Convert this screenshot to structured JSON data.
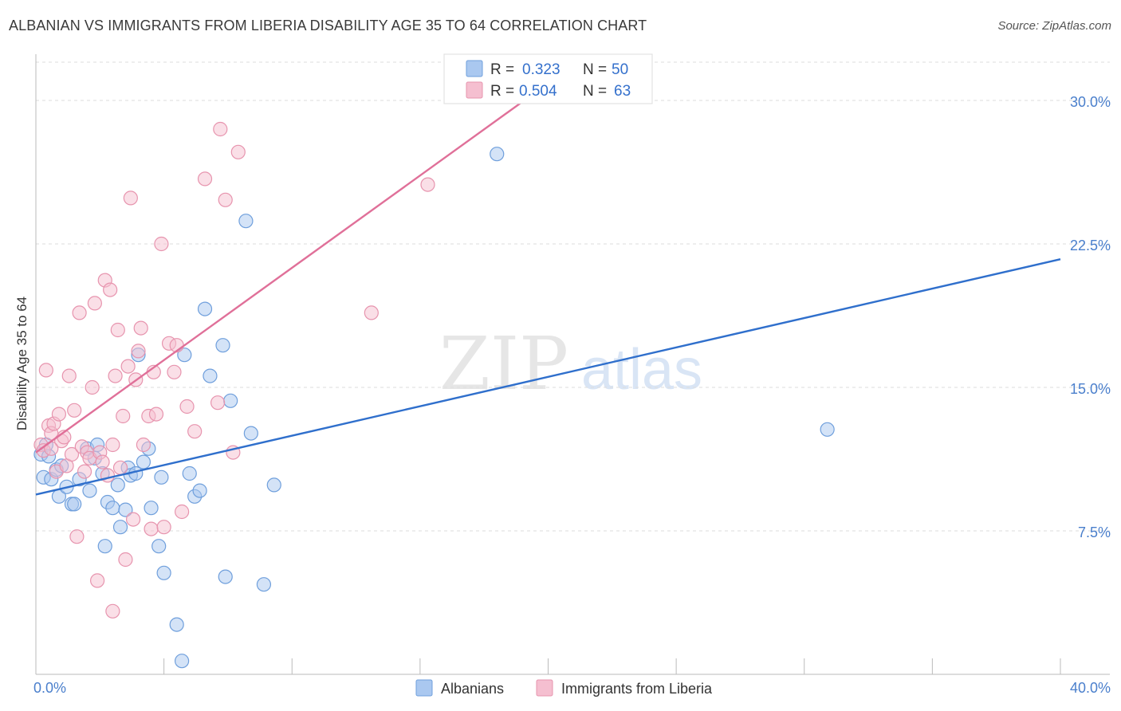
{
  "header": {
    "title": "ALBANIAN VS IMMIGRANTS FROM LIBERIA DISABILITY AGE 35 TO 64 CORRELATION CHART",
    "source": "Source: ZipAtlas.com"
  },
  "watermark": {
    "zip": "ZIP",
    "atlas": "atlas"
  },
  "legend_stats": [
    {
      "r_label": "R =",
      "r_value": "0.323",
      "n_label": "N =",
      "n_value": "50"
    },
    {
      "r_label": "R =",
      "r_value": "0.504",
      "n_label": "N =",
      "n_value": "63"
    }
  ],
  "bottom_legend": [
    {
      "label": "Albanians"
    },
    {
      "label": "Immigrants from Liberia"
    }
  ],
  "colors": {
    "albanian_fill": "#aac8f0",
    "albanian_stroke": "#6f9fdc",
    "albanian_line": "#2f6fcc",
    "liberia_fill": "#f5bfd0",
    "liberia_stroke": "#e794ae",
    "liberia_line": "#e07099",
    "axis_text": "#4a7fcc",
    "grid": "#dddddd"
  },
  "chart_data": {
    "type": "scatter",
    "title": "ALBANIAN VS IMMIGRANTS FROM LIBERIA DISABILITY AGE 35 TO 64 CORRELATION CHART",
    "xlabel": "",
    "ylabel": "Disability Age 35 to 64",
    "xlim": [
      0,
      40
    ],
    "ylim": [
      0,
      32
    ],
    "x_tick_labels": [
      "0.0%",
      "40.0%"
    ],
    "y_ticks": [
      7.5,
      15.0,
      22.5,
      30.0
    ],
    "y_tick_labels": [
      "7.5%",
      "15.0%",
      "22.5%",
      "30.0%"
    ],
    "series": [
      {
        "name": "Albanians",
        "R": 0.323,
        "N": 50,
        "trend": {
          "x": [
            0,
            40
          ],
          "y": [
            9.4,
            21.7
          ]
        },
        "points": [
          [
            0.2,
            11.5
          ],
          [
            0.3,
            10.3
          ],
          [
            0.4,
            12.0
          ],
          [
            0.5,
            11.4
          ],
          [
            0.6,
            10.2
          ],
          [
            0.8,
            10.7
          ],
          [
            0.9,
            9.3
          ],
          [
            1.0,
            10.9
          ],
          [
            1.2,
            9.8
          ],
          [
            1.4,
            8.9
          ],
          [
            1.5,
            8.9
          ],
          [
            1.7,
            10.2
          ],
          [
            2.0,
            11.8
          ],
          [
            2.1,
            9.6
          ],
          [
            2.3,
            11.3
          ],
          [
            2.4,
            12.0
          ],
          [
            2.6,
            10.5
          ],
          [
            2.7,
            6.7
          ],
          [
            2.8,
            9.0
          ],
          [
            3.0,
            8.7
          ],
          [
            3.2,
            9.9
          ],
          [
            3.3,
            7.7
          ],
          [
            3.5,
            8.6
          ],
          [
            3.6,
            10.8
          ],
          [
            3.7,
            10.4
          ],
          [
            3.9,
            10.5
          ],
          [
            4.0,
            16.7
          ],
          [
            4.2,
            11.1
          ],
          [
            4.4,
            11.8
          ],
          [
            4.5,
            8.7
          ],
          [
            4.8,
            6.7
          ],
          [
            4.9,
            10.3
          ],
          [
            5.0,
            5.3
          ],
          [
            5.5,
            2.6
          ],
          [
            5.7,
            0.7
          ],
          [
            5.8,
            16.7
          ],
          [
            6.0,
            10.5
          ],
          [
            6.2,
            9.3
          ],
          [
            6.4,
            9.6
          ],
          [
            6.6,
            19.1
          ],
          [
            6.8,
            15.6
          ],
          [
            7.3,
            17.2
          ],
          [
            7.4,
            5.1
          ],
          [
            7.6,
            14.3
          ],
          [
            8.2,
            23.7
          ],
          [
            8.4,
            12.6
          ],
          [
            8.9,
            4.7
          ],
          [
            9.3,
            9.9
          ],
          [
            18.0,
            27.2
          ],
          [
            30.9,
            12.8
          ]
        ]
      },
      {
        "name": "Immigrants from Liberia",
        "R": 0.504,
        "N": 63,
        "trend": {
          "x": [
            0,
            20
          ],
          "y": [
            11.6,
            30.9
          ]
        },
        "points": [
          [
            0.2,
            12.0
          ],
          [
            0.3,
            11.7
          ],
          [
            0.4,
            15.9
          ],
          [
            0.5,
            13.0
          ],
          [
            0.6,
            12.6
          ],
          [
            0.7,
            13.1
          ],
          [
            0.8,
            10.6
          ],
          [
            0.9,
            13.6
          ],
          [
            1.0,
            12.2
          ],
          [
            1.1,
            12.4
          ],
          [
            1.2,
            10.9
          ],
          [
            1.3,
            15.6
          ],
          [
            1.4,
            11.5
          ],
          [
            1.5,
            13.8
          ],
          [
            1.6,
            7.2
          ],
          [
            1.7,
            18.9
          ],
          [
            1.8,
            11.9
          ],
          [
            2.0,
            11.6
          ],
          [
            2.1,
            11.3
          ],
          [
            2.2,
            15.0
          ],
          [
            2.3,
            19.4
          ],
          [
            2.4,
            4.9
          ],
          [
            2.5,
            11.6
          ],
          [
            2.6,
            11.1
          ],
          [
            2.7,
            20.6
          ],
          [
            2.8,
            10.4
          ],
          [
            2.9,
            20.1
          ],
          [
            3.0,
            3.3
          ],
          [
            3.1,
            15.6
          ],
          [
            3.2,
            18.0
          ],
          [
            3.3,
            10.8
          ],
          [
            3.4,
            13.5
          ],
          [
            3.5,
            6.0
          ],
          [
            3.6,
            16.1
          ],
          [
            3.7,
            24.9
          ],
          [
            3.8,
            8.1
          ],
          [
            3.9,
            15.4
          ],
          [
            4.0,
            16.9
          ],
          [
            4.1,
            18.1
          ],
          [
            4.2,
            12.0
          ],
          [
            4.4,
            13.5
          ],
          [
            4.5,
            7.6
          ],
          [
            4.6,
            15.8
          ],
          [
            4.7,
            13.6
          ],
          [
            4.9,
            22.5
          ],
          [
            5.0,
            7.7
          ],
          [
            5.2,
            17.3
          ],
          [
            5.4,
            15.8
          ],
          [
            5.5,
            17.2
          ],
          [
            5.7,
            8.5
          ],
          [
            5.9,
            14.0
          ],
          [
            6.2,
            12.7
          ],
          [
            6.6,
            25.9
          ],
          [
            7.1,
            14.2
          ],
          [
            7.2,
            28.5
          ],
          [
            7.4,
            24.8
          ],
          [
            7.7,
            11.6
          ],
          [
            7.9,
            27.3
          ],
          [
            13.1,
            18.9
          ],
          [
            15.3,
            25.6
          ],
          [
            3.0,
            12.0
          ],
          [
            1.9,
            10.6
          ],
          [
            0.6,
            11.8
          ]
        ]
      }
    ],
    "legend": "top-center, bottom"
  }
}
